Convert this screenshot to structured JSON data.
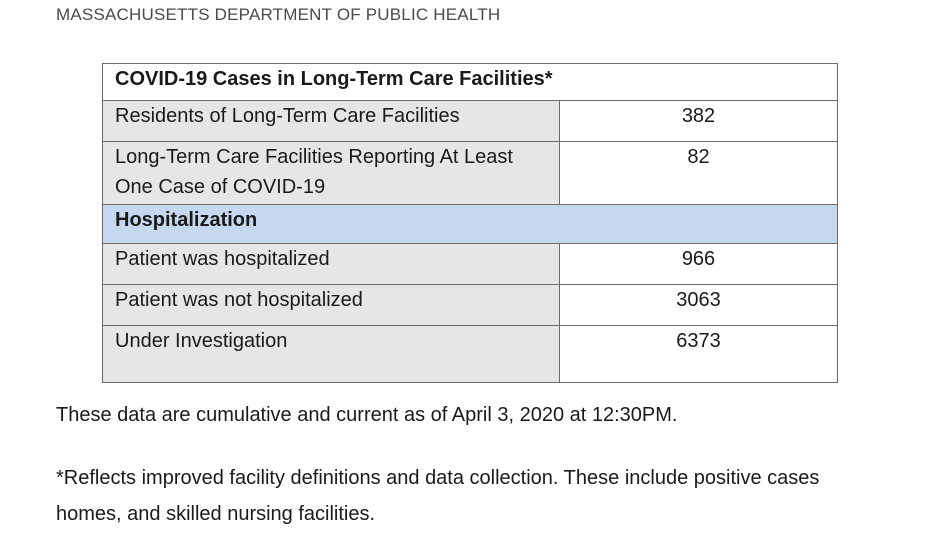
{
  "header": "MASSACHUSETTS DEPARTMENT OF PUBLIC HEALTH",
  "table": {
    "title": "COVID-19 Cases in Long-Term Care Facilities*",
    "rows": [
      {
        "label": "Residents of Long-Term Care Facilities",
        "value": "382"
      },
      {
        "label": "Long-Term Care Facilities Reporting At Least One Case of COVID-19",
        "value": "82"
      }
    ],
    "section": "Hospitalization",
    "hosp_rows": [
      {
        "label": "Patient was hospitalized",
        "value": "966"
      },
      {
        "label": "Patient was not hospitalized",
        "value": "3063"
      },
      {
        "label": "Under Investigation",
        "value": "6373"
      }
    ]
  },
  "notes": {
    "current_as_of": "These data are cumulative and current as of April 3, 2020 at 12:30PM.",
    "footnote_line1": "*Reflects improved facility definitions and data collection. These include positive cases",
    "footnote_line2": "homes, and skilled nursing facilities."
  }
}
